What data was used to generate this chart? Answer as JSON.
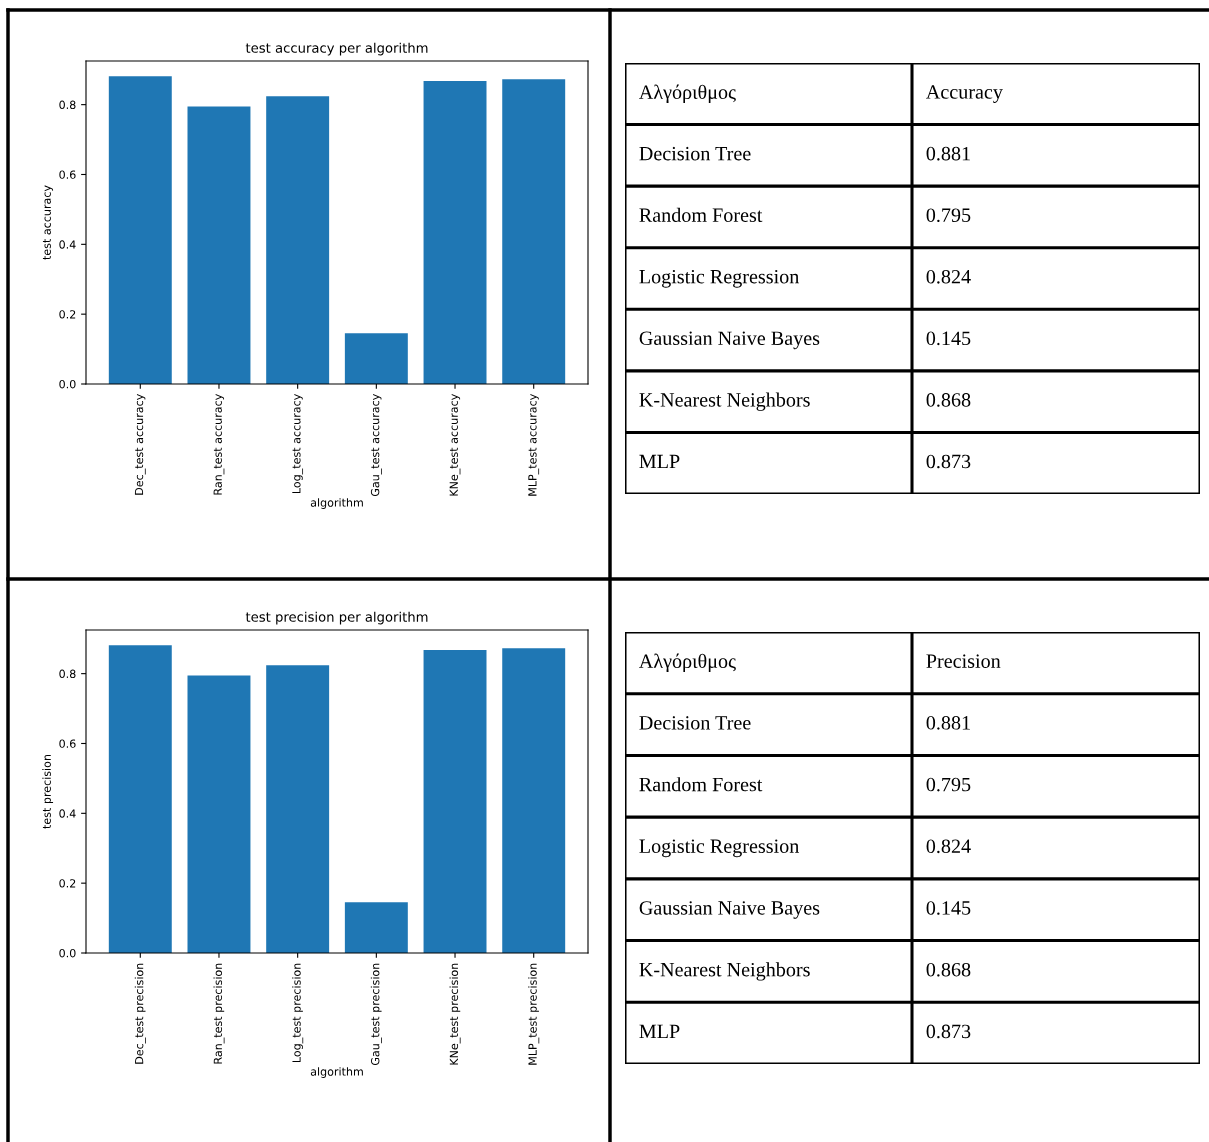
{
  "chart_data": [
    {
      "type": "bar",
      "title": "test accuracy per algorithm",
      "xlabel": "algorithm",
      "ylabel": "test accuracy",
      "color": "#1f77b4",
      "categories": [
        "Dec_test accuracy",
        "Ran_test accuracy",
        "Log_test accuracy",
        "Gau_test accuracy",
        "KNe_test accuracy",
        "MLP_test accuracy"
      ],
      "values": [
        0.881,
        0.795,
        0.824,
        0.145,
        0.868,
        0.873
      ],
      "ylim": [
        0,
        0.925
      ],
      "yticks": [
        {
          "value": 0,
          "label": "0.0"
        },
        {
          "value": 0.2,
          "label": "0.2"
        },
        {
          "value": 0.4,
          "label": "0.4"
        },
        {
          "value": 0.6,
          "label": "0.6"
        },
        {
          "value": 0.8,
          "label": "0.8"
        }
      ],
      "grid": false,
      "legend": false
    },
    {
      "type": "other",
      "xlabel": "Αλγόριθμος",
      "ylabel": "Accuracy",
      "categories": [
        "Decision Tree",
        "Random Forest",
        "Logistic Regression",
        "Gaussian Naive Bayes",
        "K-Nearest Neighbors",
        "MLP"
      ],
      "values": [
        0.881,
        0.795,
        0.824,
        0.145,
        0.868,
        0.873
      ],
      "data_labels": true
    },
    {
      "type": "bar",
      "title": "test precision per algorithm",
      "xlabel": "algorithm",
      "ylabel": "test precision",
      "color": "#1f77b4",
      "categories": [
        "Dec_test precision",
        "Ran_test precision",
        "Log_test precision",
        "Gau_test precision",
        "KNe_test precision",
        "MLP_test precision"
      ],
      "values": [
        0.881,
        0.795,
        0.824,
        0.145,
        0.868,
        0.873
      ],
      "ylim": [
        0,
        0.925
      ],
      "yticks": [
        {
          "value": 0,
          "label": "0.0"
        },
        {
          "value": 0.2,
          "label": "0.2"
        },
        {
          "value": 0.4,
          "label": "0.4"
        },
        {
          "value": 0.6,
          "label": "0.6"
        },
        {
          "value": 0.8,
          "label": "0.8"
        }
      ],
      "grid": false,
      "legend": false
    },
    {
      "type": "other",
      "xlabel": "Αλγόριθμος",
      "ylabel": "Precision",
      "categories": [
        "Decision Tree",
        "Random Forest",
        "Logistic Regression",
        "Gaussian Naive Bayes",
        "K-Nearest Neighbors",
        "MLP"
      ],
      "values": [
        0.881,
        0.795,
        0.824,
        0.145,
        0.868,
        0.873
      ],
      "data_labels": true
    }
  ]
}
